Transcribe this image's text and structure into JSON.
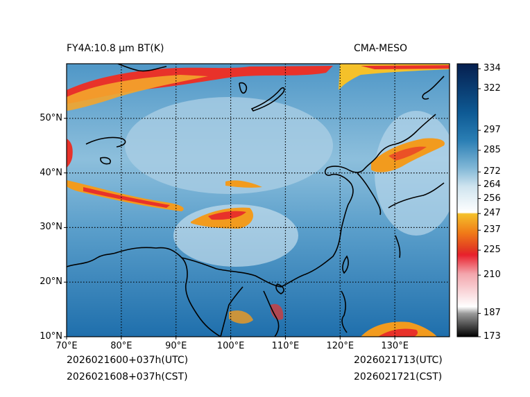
{
  "header": {
    "left_title": "FY4A:10.8 µm BT(K)",
    "right_title": "CMA-MESO"
  },
  "footer": {
    "init_utc": "2026021600+037h(UTC)",
    "init_cst": "2026021608+037h(CST)",
    "valid_utc": "2026021713(UTC)",
    "valid_cst": "2026021721(CST)"
  },
  "map": {
    "lon_range": [
      70,
      140
    ],
    "lat_range": [
      10,
      60
    ],
    "lon_ticks": [
      {
        "value": 70,
        "label": "70°E"
      },
      {
        "value": 80,
        "label": "80°E"
      },
      {
        "value": 90,
        "label": "90°E"
      },
      {
        "value": 100,
        "label": "100°E"
      },
      {
        "value": 110,
        "label": "110°E"
      },
      {
        "value": 120,
        "label": "120°E"
      },
      {
        "value": 130,
        "label": "130°E"
      }
    ],
    "lat_ticks": [
      {
        "value": 10,
        "label": "10°N"
      },
      {
        "value": 20,
        "label": "20°N"
      },
      {
        "value": 30,
        "label": "30°N"
      },
      {
        "value": 40,
        "label": "40°N"
      },
      {
        "value": 50,
        "label": "50°N"
      }
    ],
    "colors": {
      "background": "#3b88c0",
      "cold": "#e23a22",
      "warm_cloud": "#f29b1e"
    }
  },
  "colorbar": {
    "range": [
      173,
      337
    ],
    "ticks": [
      {
        "value": 173,
        "label": "173"
      },
      {
        "value": 187,
        "label": "187"
      },
      {
        "value": 210,
        "label": "210"
      },
      {
        "value": 225,
        "label": "225"
      },
      {
        "value": 237,
        "label": "237"
      },
      {
        "value": 247,
        "label": "247"
      },
      {
        "value": 256,
        "label": "256"
      },
      {
        "value": 264,
        "label": "264"
      },
      {
        "value": 272,
        "label": "272"
      },
      {
        "value": 285,
        "label": "285"
      },
      {
        "value": 297,
        "label": "297"
      },
      {
        "value": 322,
        "label": "322"
      },
      {
        "value": 334,
        "label": "334"
      }
    ]
  }
}
